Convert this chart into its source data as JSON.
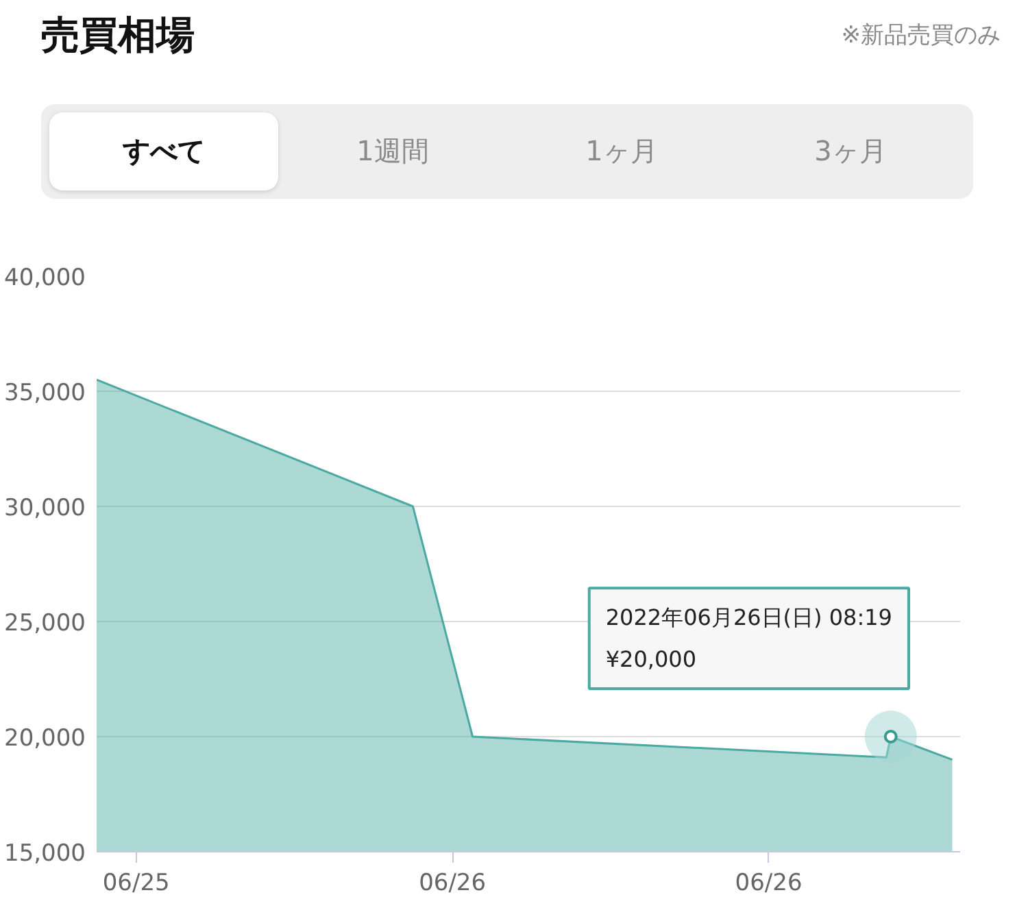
{
  "chart_data": {
    "type": "area",
    "title": "売買相場",
    "annotations": [
      "※新品売買のみ",
      "すべて",
      "1週間",
      "1ヶ月",
      "3ヶ月",
      {
        "text": "2022年06月26日(日) 08:19\n¥20,000",
        "x": "2022-06-26T08:19",
        "y": 20000
      }
    ],
    "x": [
      "2022-06-25T17:15",
      "2022-06-25T23:15",
      "2022-06-26T00:23",
      "2022-06-26T08:14",
      "2022-06-26T08:19",
      "2022-06-26T09:29"
    ],
    "series": [
      {
        "color": "#4aaaa2",
        "values": [
          35500,
          30000,
          20000,
          19100,
          20000,
          19000
        ]
      }
    ],
    "xlim": [
      "2022-06-25T17:15",
      "2022-06-26T09:38"
    ],
    "xticks": [
      {
        "value": "2022-06-25T18:00",
        "label": "06/25"
      },
      {
        "value": "2022-06-26T00:00",
        "label": "06/26"
      },
      {
        "value": "2022-06-26T06:00",
        "label": "06/26"
      }
    ],
    "ylim": [
      15000,
      40000
    ],
    "yticks": [
      {
        "value": 15000,
        "label": "15,000"
      },
      {
        "value": 20000,
        "label": "20,000"
      },
      {
        "value": 25000,
        "label": "25,000"
      },
      {
        "value": 30000,
        "label": "30,000"
      },
      {
        "value": 35000,
        "label": "35,000"
      },
      {
        "value": 40000,
        "label": "40,000"
      }
    ],
    "grid": "y"
  }
}
